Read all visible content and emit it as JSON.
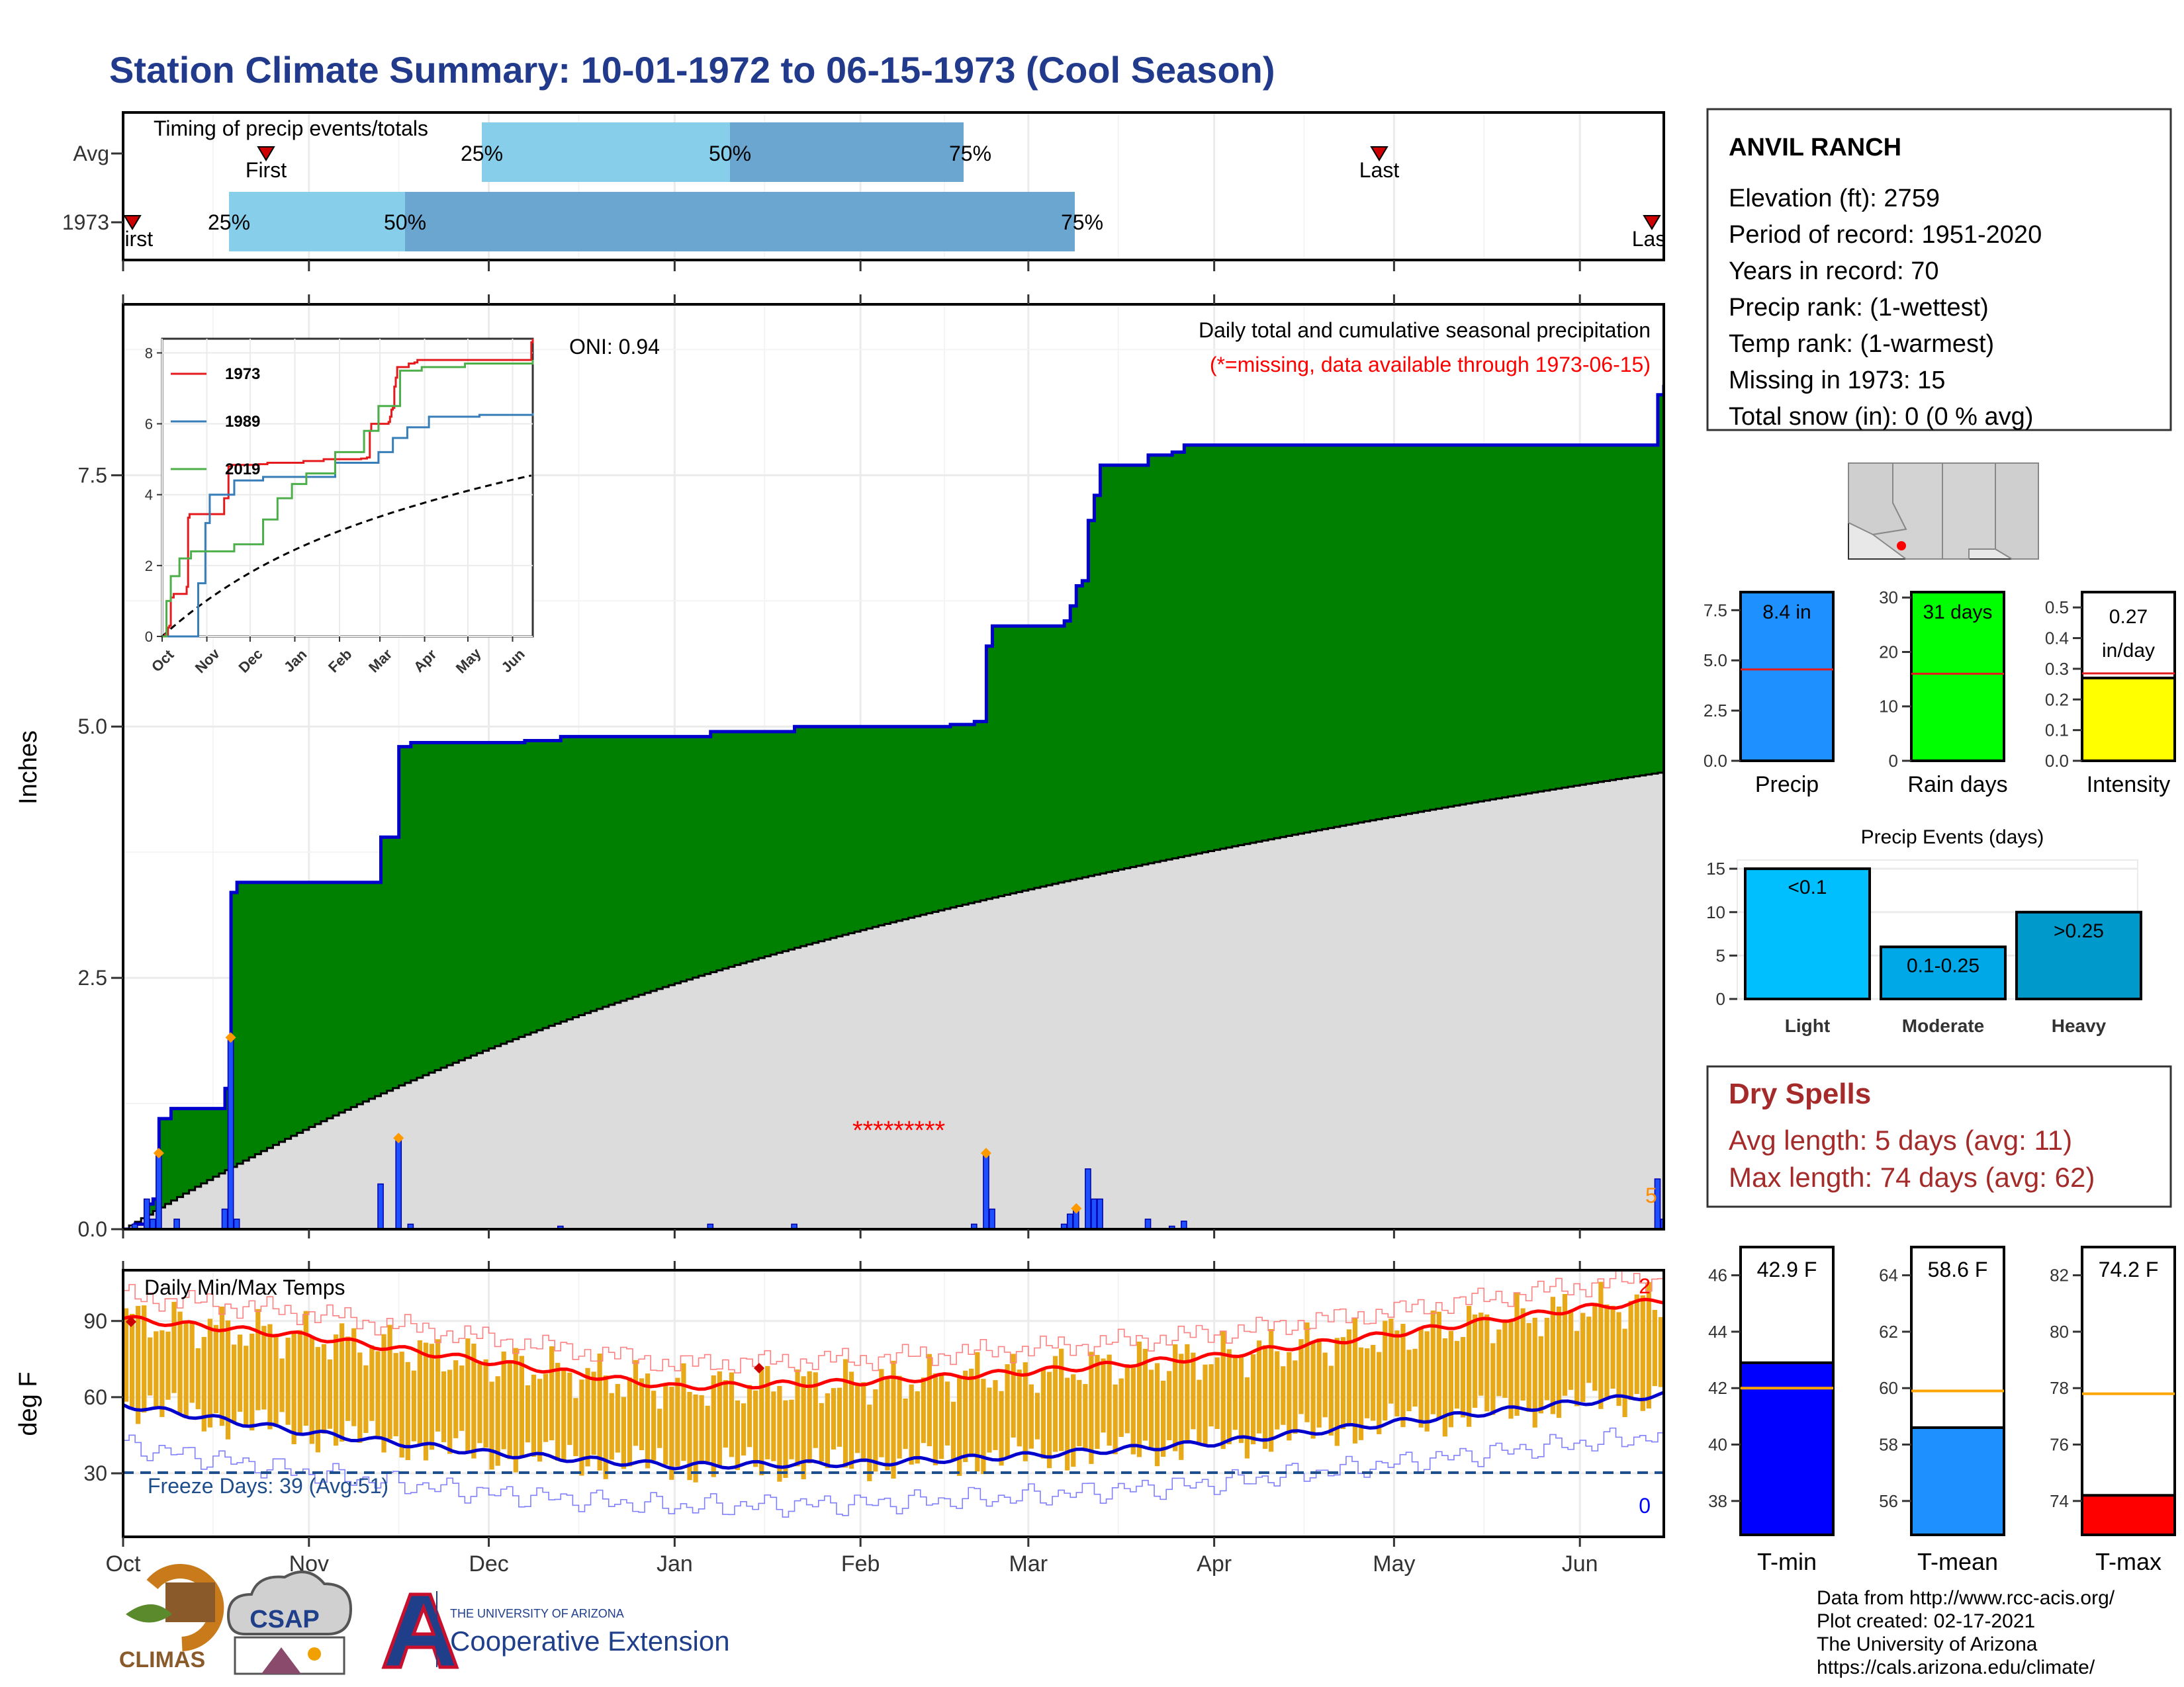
{
  "title": "Station Climate Summary: 10-01-1972 to 06-15-1973 (Cool Season)",
  "months": [
    "Oct",
    "Nov",
    "Dec",
    "Jan",
    "Feb",
    "Mar",
    "Apr",
    "May",
    "Jun"
  ],
  "timing": {
    "title": "Timing of precip events/totals",
    "rows": [
      {
        "label": "Avg",
        "first": "First",
        "last": "Last",
        "p25": "25%",
        "p50": "50%",
        "p75": "75%"
      },
      {
        "label": "1973",
        "first": "First",
        "last": "Last",
        "p25": "25%",
        "p50": "50%",
        "p75": "75%"
      }
    ]
  },
  "precip": {
    "ylabel": "Inches",
    "yticks": [
      "0.0",
      "2.5",
      "5.0",
      "7.5"
    ],
    "title": "Daily total and cumulative seasonal precipitation",
    "note": "(*=missing, data available through 1973-06-15)",
    "oni": "ONI: 0.94",
    "missing_count": "5",
    "missing_span": "*********"
  },
  "inset": {
    "yticks": [
      "0",
      "2",
      "4",
      "6",
      "8"
    ],
    "series": [
      {
        "name": "1973",
        "color": "#e41a1c"
      },
      {
        "name": "1989",
        "color": "#377eb8"
      },
      {
        "name": "2019",
        "color": "#4daf4a"
      }
    ]
  },
  "temps": {
    "ylabel": "deg F",
    "title": "Daily Min/Max Temps",
    "yticks": [
      "30",
      "60",
      "90"
    ],
    "freeze": "Freeze Days: 39 (Avg:51)",
    "records_high": "2",
    "records_low": "0"
  },
  "station": {
    "name": "ANVIL RANCH",
    "lines": [
      "Elevation (ft): 2759",
      "Period of record: 1951-2020",
      "Years in record: 70",
      "Precip rank:  (1-wettest)",
      "Temp rank:  (1-warmest)",
      "Missing in 1973: 15",
      "Total snow (in): 0 (0 % avg)"
    ]
  },
  "summary_bars": [
    {
      "label": "Precip",
      "value": "8.4 in",
      "color": "#1e90ff",
      "yticks": [
        "0.0",
        "2.5",
        "5.0",
        "7.5"
      ]
    },
    {
      "label": "Rain days",
      "value": "31 days",
      "color": "#00ff00",
      "yticks": [
        "0",
        "10",
        "20",
        "30"
      ]
    },
    {
      "label": "Intensity",
      "value": "0.27",
      "value2": "in/day",
      "color": "#ffff00",
      "yticks": [
        "0.0",
        "0.1",
        "0.2",
        "0.3",
        "0.4",
        "0.5"
      ]
    }
  ],
  "events": {
    "title": "Precip Events (days)",
    "yticks": [
      "0",
      "5",
      "10",
      "15"
    ],
    "bars": [
      {
        "label": "Light",
        "value_label": "<0.1",
        "color": "#00bfff"
      },
      {
        "label": "Moderate",
        "value_label": "0.1-0.25",
        "color": "#00a8e8"
      },
      {
        "label": "Heavy",
        "value_label": ">0.25",
        "color": "#0099cc"
      }
    ]
  },
  "dry_spells": {
    "title": "Dry Spells",
    "avg": "Avg length: 5 days (avg: 11)",
    "max": "Max length: 74 days (avg: 62)"
  },
  "temp_bars": [
    {
      "label": "T-min",
      "value": "42.9 F",
      "color": "#0000ff",
      "yticks": [
        "38",
        "40",
        "42",
        "44",
        "46"
      ]
    },
    {
      "label": "T-mean",
      "value": "58.6 F",
      "color": "#1e90ff",
      "yticks": [
        "56",
        "58",
        "60",
        "62",
        "64"
      ]
    },
    {
      "label": "T-max",
      "value": "74.2 F",
      "color": "#ff0000",
      "yticks": [
        "74",
        "76",
        "78",
        "80",
        "82"
      ]
    }
  ],
  "footer": {
    "lines": [
      "Data from http://www.rcc-acis.org/",
      "Plot created: 02-17-2021",
      "The University of Arizona",
      "https://cals.arizona.edu/climate/"
    ],
    "climas": "CLIMAS",
    "csap": "CSAP",
    "uofa_small": "THE UNIVERSITY OF ARIZONA",
    "uofa_big": "Cooperative Extension"
  },
  "chart_data": [
    {
      "type": "area",
      "title": "Daily total and cumulative seasonal precipitation",
      "ylabel": "Inches",
      "ylim": [
        0,
        9.2
      ],
      "x_range": [
        "1972-10-01",
        "1973-06-15"
      ],
      "cumulative_1973_steps": [
        [
          "1972-10-01",
          0.0
        ],
        [
          "1972-10-03",
          0.05
        ],
        [
          "1972-10-05",
          0.25
        ],
        [
          "1972-10-06",
          0.3
        ],
        [
          "1972-10-07",
          1.1
        ],
        [
          "1972-10-09",
          1.2
        ],
        [
          "1972-10-17",
          1.2
        ],
        [
          "1972-10-18",
          1.4
        ],
        [
          "1972-10-19",
          3.35
        ],
        [
          "1972-10-20",
          3.45
        ],
        [
          "1972-11-12",
          3.45
        ],
        [
          "1972-11-13",
          3.9
        ],
        [
          "1972-11-16",
          4.8
        ],
        [
          "1972-11-18",
          4.84
        ],
        [
          "1972-12-07",
          4.86
        ],
        [
          "1972-12-13",
          4.9
        ],
        [
          "1973-01-06",
          4.9
        ],
        [
          "1973-01-07",
          4.95
        ],
        [
          "1973-01-21",
          5.0
        ],
        [
          "1973-02-16",
          5.02
        ],
        [
          "1973-02-20",
          5.05
        ],
        [
          "1973-02-22",
          5.8
        ],
        [
          "1973-02-23",
          6.0
        ],
        [
          "1973-03-06",
          6.0
        ],
        [
          "1973-03-07",
          6.05
        ],
        [
          "1973-03-08",
          6.2
        ],
        [
          "1973-03-09",
          6.4
        ],
        [
          "1973-03-10",
          6.45
        ],
        [
          "1973-03-11",
          7.05
        ],
        [
          "1973-03-12",
          7.3
        ],
        [
          "1973-03-13",
          7.6
        ],
        [
          "1973-03-20",
          7.6
        ],
        [
          "1973-03-21",
          7.7
        ],
        [
          "1973-03-25",
          7.73
        ],
        [
          "1973-03-27",
          7.8
        ],
        [
          "1973-06-13",
          7.8
        ],
        [
          "1973-06-14",
          8.3
        ],
        [
          "1973-06-15",
          8.4
        ]
      ],
      "avg_cumulative_endpoints": [
        [
          "1972-10-01",
          0.0
        ],
        [
          "1973-06-15",
          4.55
        ]
      ],
      "daily_totals": [
        [
          "1972-10-03",
          0.05
        ],
        [
          "1972-10-05",
          0.3
        ],
        [
          "1972-10-06",
          0.1
        ],
        [
          "1972-10-07",
          0.75
        ],
        [
          "1972-10-10",
          0.1
        ],
        [
          "1972-10-18",
          0.2
        ],
        [
          "1972-10-19",
          1.9
        ],
        [
          "1972-10-20",
          0.1
        ],
        [
          "1972-11-13",
          0.45
        ],
        [
          "1972-11-16",
          0.9
        ],
        [
          "1972-11-18",
          0.05
        ],
        [
          "1972-12-13",
          0.03
        ],
        [
          "1973-01-07",
          0.05
        ],
        [
          "1973-01-21",
          0.05
        ],
        [
          "1973-02-20",
          0.05
        ],
        [
          "1973-02-22",
          0.75
        ],
        [
          "1973-02-23",
          0.2
        ],
        [
          "1973-03-07",
          0.05
        ],
        [
          "1973-03-08",
          0.15
        ],
        [
          "1973-03-09",
          0.2
        ],
        [
          "1973-03-11",
          0.6
        ],
        [
          "1973-03-12",
          0.3
        ],
        [
          "1973-03-13",
          0.3
        ],
        [
          "1973-03-21",
          0.1
        ],
        [
          "1973-03-25",
          0.03
        ],
        [
          "1973-03-27",
          0.08
        ],
        [
          "1973-06-14",
          0.5
        ],
        [
          "1973-06-15",
          0.1
        ]
      ],
      "missing_dates": [
        "1973-02-01",
        "1973-02-16"
      ]
    },
    {
      "type": "line",
      "title": "Daily Min/Max Temps",
      "ylabel": "deg F",
      "ylim": [
        5,
        110
      ],
      "series": [
        {
          "name": "Avg max",
          "x": [
            "1972-10-01",
            "1972-11-01",
            "1972-12-01",
            "1973-01-01",
            "1973-02-01",
            "1973-03-01",
            "1973-04-01",
            "1973-05-01",
            "1973-06-01",
            "1973-06-15"
          ],
          "values": [
            91,
            84,
            74,
            64,
            66,
            70,
            76,
            85,
            95,
            98
          ]
        },
        {
          "name": "Avg min",
          "x": [
            "1972-10-01",
            "1972-11-01",
            "1972-12-01",
            "1973-01-01",
            "1973-02-01",
            "1973-03-01",
            "1973-04-01",
            "1973-05-01",
            "1973-06-01",
            "1973-06-15"
          ],
          "values": [
            57,
            46,
            38,
            33,
            34,
            37,
            42,
            50,
            58,
            61
          ]
        }
      ],
      "freeze_line": 32
    },
    {
      "type": "bar",
      "title": "Precip Events (days)",
      "categories": [
        "Light",
        "Moderate",
        "Heavy"
      ],
      "values": [
        15,
        6,
        10
      ],
      "ylim": [
        0,
        16
      ]
    },
    {
      "type": "bar",
      "categories": [
        "Precip",
        "Rain days",
        "Intensity"
      ],
      "values": [
        8.4,
        31,
        0.27
      ],
      "averages": [
        4.55,
        16,
        0.285
      ]
    },
    {
      "type": "bar",
      "categories": [
        "T-min",
        "T-mean",
        "T-max"
      ],
      "values": [
        42.9,
        58.6,
        74.2
      ],
      "averages": [
        42,
        59.9,
        77.8
      ]
    }
  ]
}
